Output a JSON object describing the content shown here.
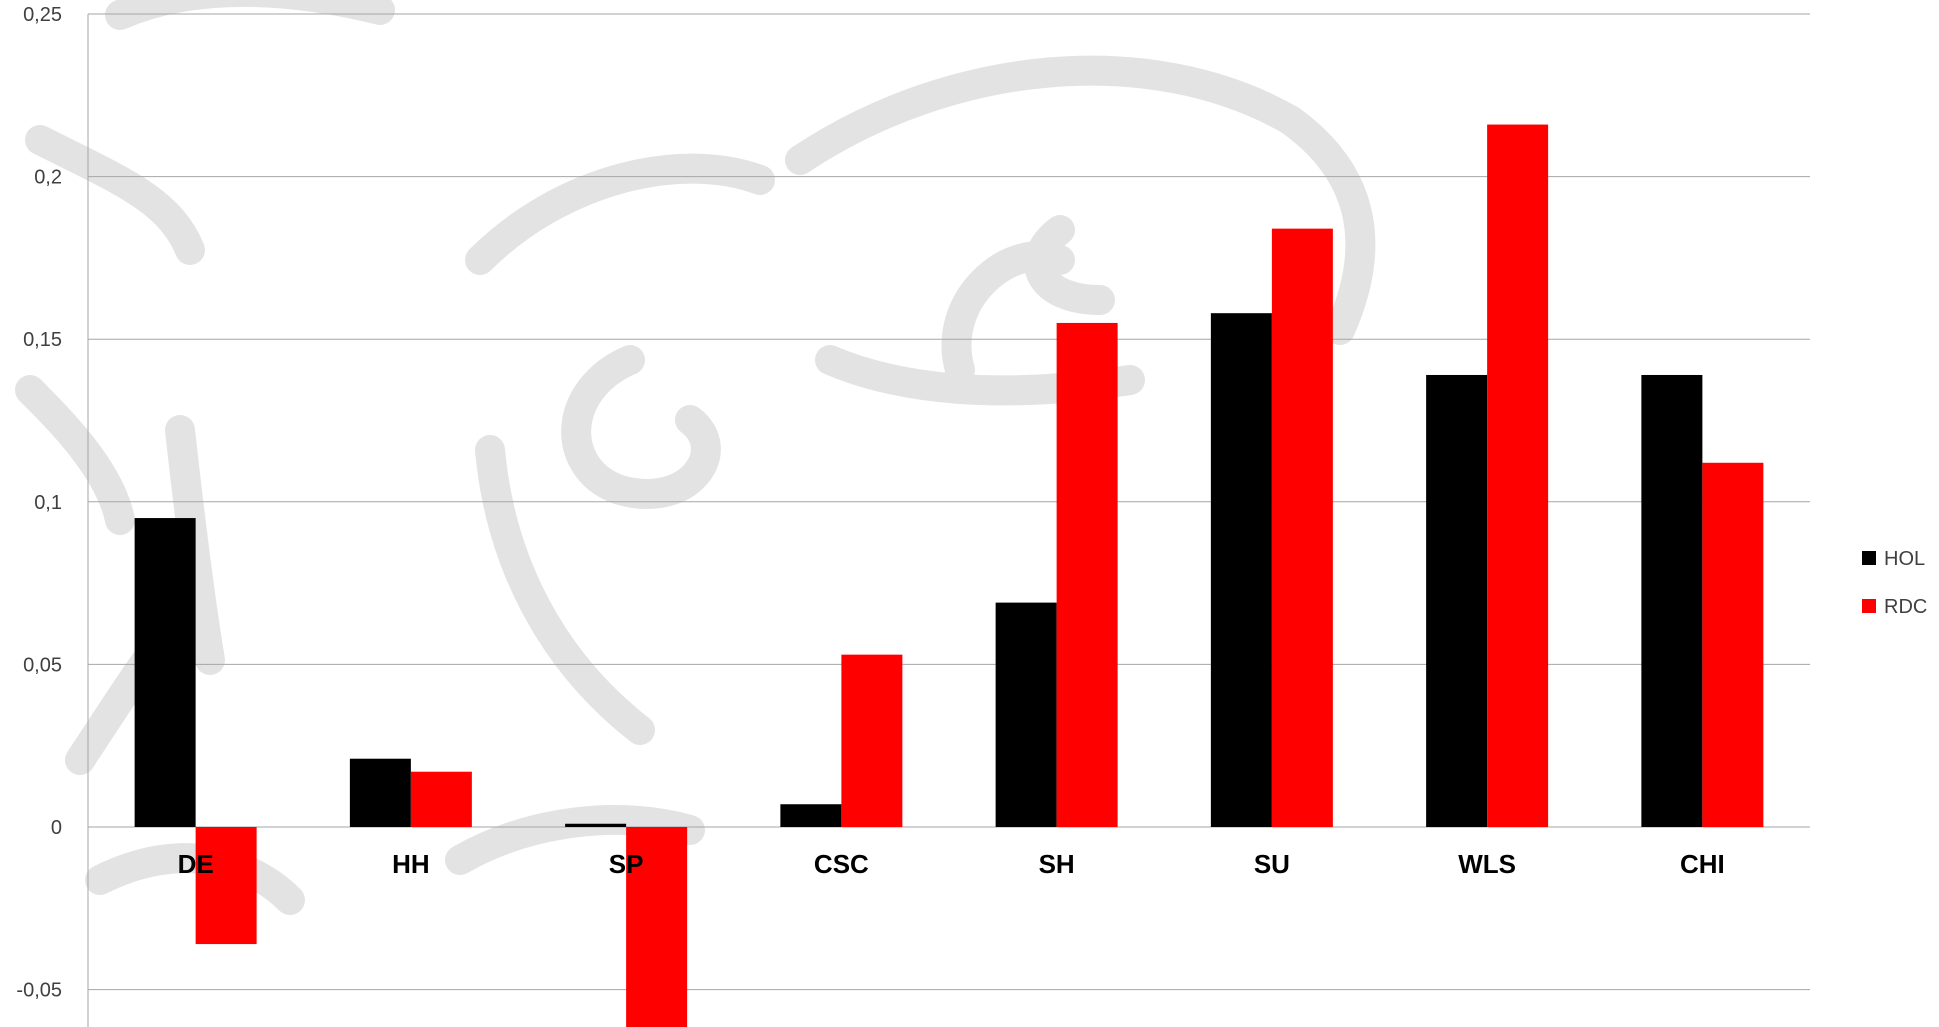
{
  "chart_data": {
    "type": "bar",
    "categories": [
      "DE",
      "HH",
      "SP",
      "CSC",
      "SH",
      "SU",
      "WLS",
      "CHI"
    ],
    "series": [
      {
        "name": "HOL",
        "color": "#000000",
        "values": [
          0.095,
          0.021,
          0.001,
          0.007,
          0.069,
          0.158,
          0.139,
          0.139
        ]
      },
      {
        "name": "RDC",
        "color": "#ff0000",
        "values": [
          -0.036,
          0.017,
          -0.062,
          0.053,
          0.155,
          0.184,
          0.216,
          0.112
        ]
      }
    ],
    "yticks": [
      0.25,
      0.2,
      0.15,
      0.1,
      0.05,
      0,
      -0.05
    ],
    "ytick_labels": [
      "0,25",
      "0,2",
      "0,15",
      "0,1",
      "0,05",
      "0",
      "-0,05"
    ],
    "ylim": [
      -0.062,
      0.25
    ],
    "grid": true,
    "legend_position": "right"
  }
}
